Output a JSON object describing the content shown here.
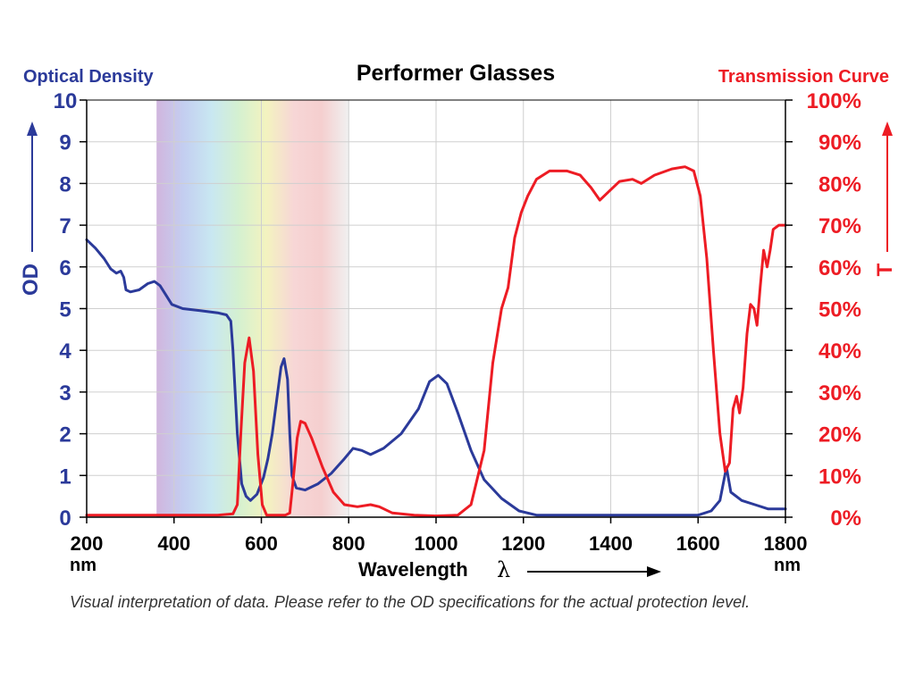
{
  "colors": {
    "od": "#2b3a9a",
    "transmission": "#ed1c24",
    "grid": "#cfcfcf",
    "axis": "#000000"
  },
  "spectrum_band": {
    "range_nm": [
      360,
      800
    ],
    "colors": [
      "#c9a9d8",
      "#b9c6ee",
      "#bfe3ef",
      "#cdeec8",
      "#f1f1b4",
      "#f6cfcf",
      "#f3c6c6",
      "#eeeeee"
    ]
  },
  "footnote": "Visual interpretation of data. Please refer to the OD specifications for the actual protection level.",
  "chart_data": {
    "type": "line",
    "title": "Performer Glasses",
    "left_axis_title": "Optical Density",
    "right_axis_title": "Transmission Curve",
    "xlabel": "Wavelength",
    "xlabel_symbol": "λ",
    "x_unit_left": "nm",
    "x_unit_right": "nm",
    "ylabel_left": "OD",
    "ylabel_right": "T",
    "xlim": [
      200,
      1800
    ],
    "ylim_left": [
      0,
      10
    ],
    "ylim_right": [
      0,
      100
    ],
    "x_ticks": [
      200,
      400,
      600,
      800,
      1000,
      1200,
      1400,
      1600,
      1800
    ],
    "x_tick_labels": [
      "200",
      "400",
      "600",
      "800",
      "1000",
      "1200",
      "1400",
      "1600",
      "1800"
    ],
    "y_left_ticks": [
      0,
      1,
      2,
      3,
      4,
      5,
      6,
      7,
      8,
      9,
      10
    ],
    "y_left_tick_labels": [
      "0",
      "1",
      "2",
      "3",
      "4",
      "5",
      "6",
      "7",
      "8",
      "9",
      "10"
    ],
    "y_right_ticks": [
      0,
      10,
      20,
      30,
      40,
      50,
      60,
      70,
      80,
      90,
      100
    ],
    "y_right_tick_labels": [
      "0%",
      "10%",
      "20%",
      "30%",
      "40%",
      "50%",
      "60%",
      "70%",
      "80%",
      "90%",
      "100%"
    ],
    "grid": true,
    "series": [
      {
        "axis": "left",
        "points": [
          [
            200,
            6.65
          ],
          [
            220,
            6.45
          ],
          [
            240,
            6.2
          ],
          [
            255,
            5.95
          ],
          [
            268,
            5.85
          ],
          [
            278,
            5.9
          ],
          [
            285,
            5.75
          ],
          [
            290,
            5.45
          ],
          [
            300,
            5.4
          ],
          [
            320,
            5.45
          ],
          [
            340,
            5.6
          ],
          [
            355,
            5.65
          ],
          [
            368,
            5.55
          ],
          [
            380,
            5.35
          ],
          [
            395,
            5.1
          ],
          [
            420,
            5.0
          ],
          [
            460,
            4.95
          ],
          [
            500,
            4.9
          ],
          [
            520,
            4.85
          ],
          [
            530,
            4.7
          ],
          [
            535,
            4.0
          ],
          [
            545,
            2.0
          ],
          [
            555,
            0.8
          ],
          [
            565,
            0.5
          ],
          [
            575,
            0.4
          ],
          [
            590,
            0.55
          ],
          [
            605,
            0.95
          ],
          [
            615,
            1.4
          ],
          [
            625,
            2.0
          ],
          [
            635,
            2.8
          ],
          [
            645,
            3.6
          ],
          [
            652,
            3.8
          ],
          [
            660,
            3.3
          ],
          [
            665,
            2.0
          ],
          [
            670,
            1.0
          ],
          [
            680,
            0.7
          ],
          [
            700,
            0.65
          ],
          [
            730,
            0.8
          ],
          [
            760,
            1.05
          ],
          [
            790,
            1.4
          ],
          [
            810,
            1.65
          ],
          [
            830,
            1.6
          ],
          [
            850,
            1.5
          ],
          [
            880,
            1.65
          ],
          [
            920,
            2.0
          ],
          [
            960,
            2.6
          ],
          [
            985,
            3.25
          ],
          [
            1005,
            3.4
          ],
          [
            1025,
            3.2
          ],
          [
            1050,
            2.5
          ],
          [
            1080,
            1.6
          ],
          [
            1110,
            0.9
          ],
          [
            1150,
            0.45
          ],
          [
            1190,
            0.15
          ],
          [
            1230,
            0.05
          ],
          [
            1400,
            0.05
          ],
          [
            1600,
            0.05
          ],
          [
            1630,
            0.15
          ],
          [
            1650,
            0.4
          ],
          [
            1665,
            1.2
          ],
          [
            1675,
            0.6
          ],
          [
            1700,
            0.4
          ],
          [
            1730,
            0.3
          ],
          [
            1760,
            0.2
          ],
          [
            1800,
            0.2
          ]
        ]
      },
      {
        "axis": "right",
        "points": [
          [
            200,
            0.5
          ],
          [
            300,
            0.5
          ],
          [
            400,
            0.5
          ],
          [
            500,
            0.5
          ],
          [
            535,
            0.8
          ],
          [
            545,
            3
          ],
          [
            553,
            20
          ],
          [
            562,
            37
          ],
          [
            572,
            43
          ],
          [
            582,
            35
          ],
          [
            592,
            15
          ],
          [
            602,
            3
          ],
          [
            612,
            0.5
          ],
          [
            655,
            0.5
          ],
          [
            665,
            1
          ],
          [
            672,
            8
          ],
          [
            682,
            19
          ],
          [
            690,
            23
          ],
          [
            700,
            22.5
          ],
          [
            715,
            19
          ],
          [
            740,
            12
          ],
          [
            765,
            6
          ],
          [
            790,
            3
          ],
          [
            820,
            2.5
          ],
          [
            850,
            3
          ],
          [
            870,
            2.5
          ],
          [
            900,
            1
          ],
          [
            950,
            0.5
          ],
          [
            1000,
            0.3
          ],
          [
            1050,
            0.5
          ],
          [
            1080,
            3
          ],
          [
            1110,
            16
          ],
          [
            1130,
            37
          ],
          [
            1150,
            50
          ],
          [
            1165,
            55
          ],
          [
            1180,
            67
          ],
          [
            1195,
            73
          ],
          [
            1210,
            77
          ],
          [
            1230,
            81
          ],
          [
            1260,
            83
          ],
          [
            1300,
            83
          ],
          [
            1330,
            82
          ],
          [
            1355,
            79
          ],
          [
            1375,
            76
          ],
          [
            1395,
            78
          ],
          [
            1420,
            80.5
          ],
          [
            1450,
            81
          ],
          [
            1470,
            80
          ],
          [
            1500,
            82
          ],
          [
            1540,
            83.5
          ],
          [
            1570,
            84
          ],
          [
            1590,
            83
          ],
          [
            1605,
            77
          ],
          [
            1620,
            62
          ],
          [
            1635,
            40
          ],
          [
            1650,
            20
          ],
          [
            1662,
            11
          ],
          [
            1672,
            13
          ],
          [
            1680,
            26
          ],
          [
            1688,
            29
          ],
          [
            1695,
            25
          ],
          [
            1703,
            31
          ],
          [
            1712,
            44
          ],
          [
            1720,
            51
          ],
          [
            1728,
            50
          ],
          [
            1735,
            46
          ],
          [
            1742,
            55
          ],
          [
            1750,
            64
          ],
          [
            1758,
            60
          ],
          [
            1765,
            64
          ],
          [
            1772,
            69
          ],
          [
            1785,
            70
          ],
          [
            1800,
            70
          ]
        ]
      }
    ]
  }
}
